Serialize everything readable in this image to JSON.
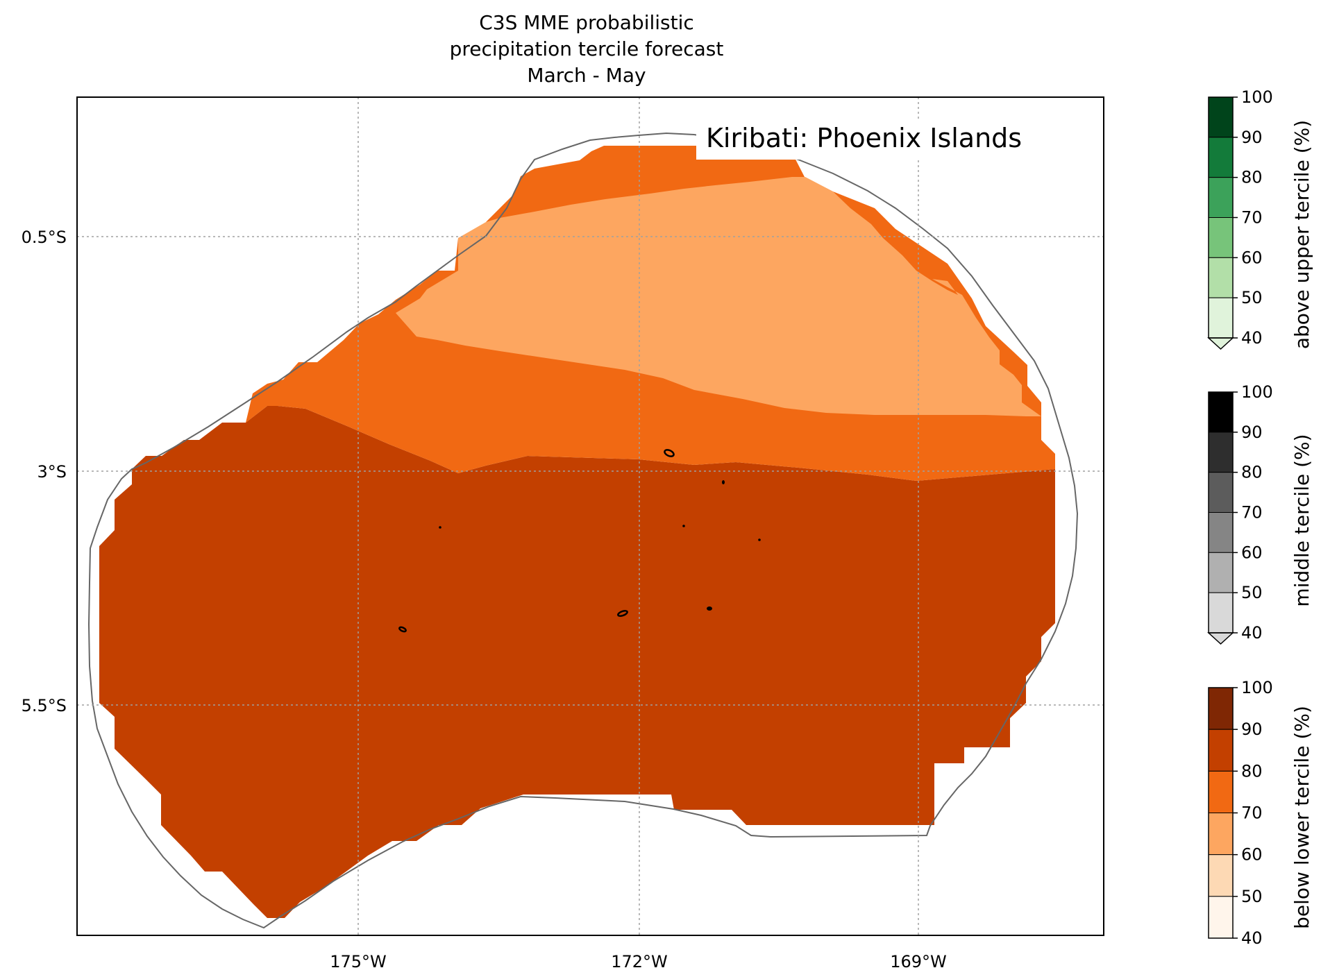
{
  "title": {
    "line1": "C3S MME probabilistic",
    "line2": "precipitation tercile forecast",
    "line3": "March - May"
  },
  "region_label": "Kiribati: Phoenix Islands",
  "map": {
    "lon_ticks": [
      "175°W",
      "172°W",
      "169°W"
    ],
    "lat_ticks": [
      "0.5°S",
      "3°S",
      "5.5°S"
    ],
    "gridlines": true
  },
  "categories": {
    "below_lower": {
      "label": "below lower tercile (%)",
      "colors": [
        "#fff5eb",
        "#fdd9b4",
        "#fda660",
        "#f16913",
        "#c34000",
        "#7f2704"
      ]
    },
    "middle": {
      "label": "middle tercile (%)",
      "colors": [
        "#d9d9d9",
        "#b0b0b0",
        "#858585",
        "#5c5c5c",
        "#2e2e2e",
        "#000000"
      ]
    },
    "above_upper": {
      "label": "above upper tercile (%)",
      "colors": [
        "#e0f3db",
        "#b2dfa8",
        "#77c47a",
        "#3ca25a",
        "#137b3a",
        "#00441b"
      ]
    }
  },
  "colorbar_ticks": [
    "40",
    "50",
    "60",
    "70",
    "80",
    "90",
    "100"
  ],
  "forecast_fill_colors": {
    "band_60_70": "#fda660",
    "band_70_80": "#f16913",
    "band_80_90": "#c34000"
  },
  "outline_color": "#666666"
}
